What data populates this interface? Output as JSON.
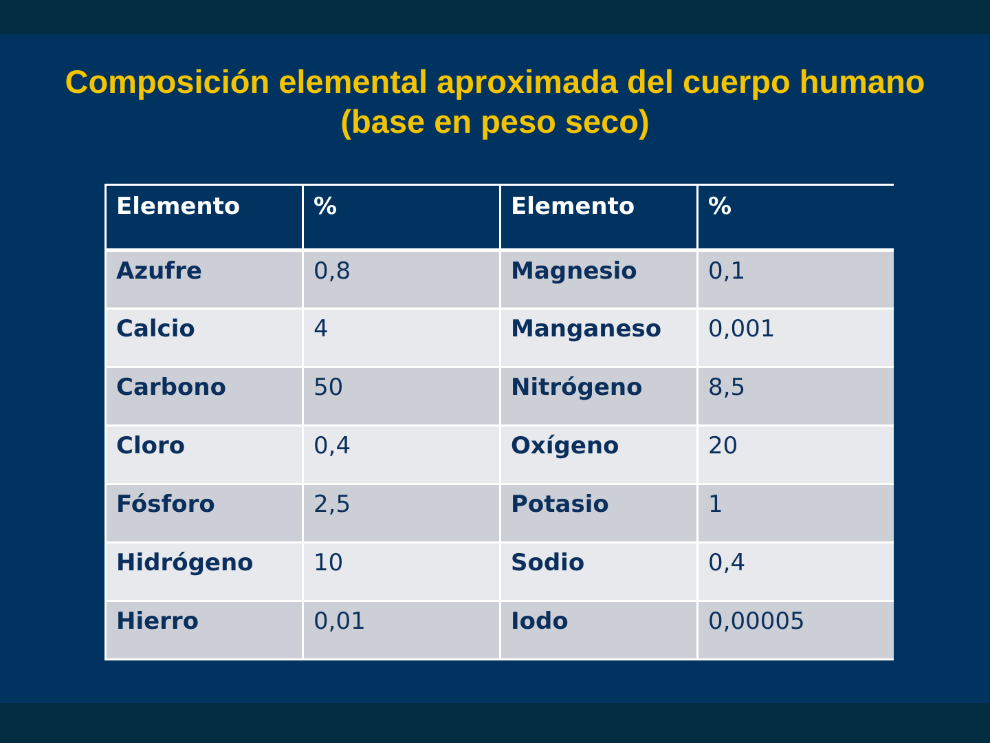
{
  "slide": {
    "title_line1": "Composición elemental aproximada del cuerpo humano",
    "title_line2": "(base en peso seco)"
  },
  "table": {
    "headers": [
      "Elemento",
      "%",
      "Elemento",
      "%"
    ],
    "rows": [
      [
        "Azufre",
        "0,8",
        "Magnesio",
        "0,1"
      ],
      [
        "Calcio",
        "4",
        "Manganeso",
        "0,001"
      ],
      [
        "Carbono",
        "50",
        "Nitrógeno",
        "8,5"
      ],
      [
        "Cloro",
        "0,4",
        "Oxígeno",
        "20"
      ],
      [
        "Fósforo",
        "2,5",
        "Potasio",
        "1"
      ],
      [
        "Hidrógeno",
        "10",
        "Sodio",
        "0,4"
      ],
      [
        "Hierro",
        "0,01",
        "Iodo",
        "0,00005"
      ]
    ]
  },
  "colors": {
    "background": "#00335f",
    "title": "#f5c400",
    "row_dark": "#cdcfd6",
    "row_light": "#e8e9ed",
    "cell_text": "#0b2f5c"
  }
}
